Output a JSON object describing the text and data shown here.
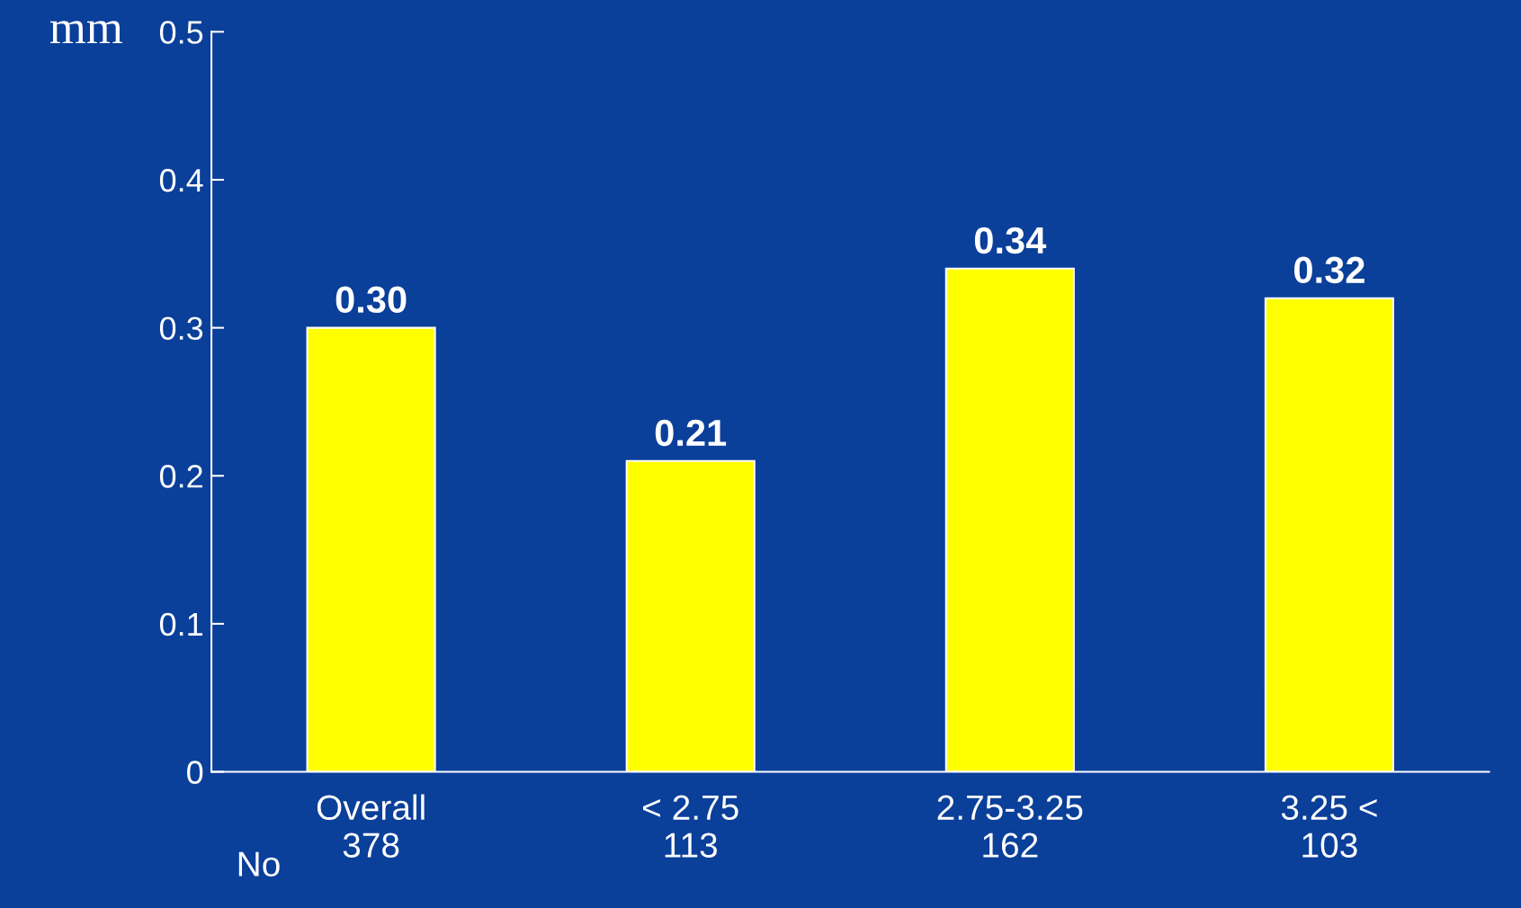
{
  "chart_data": {
    "type": "bar",
    "categories": [
      "Overall\n378",
      "< 2.75\n113",
      "2.75-3.25\n162",
      "3.25 <\n103"
    ],
    "values": [
      0.3,
      0.21,
      0.34,
      0.32
    ],
    "value_labels": [
      "0.30",
      "0.21",
      "0.34",
      "0.32"
    ],
    "color": "#ffff00",
    "ylabel": "mm",
    "ylim": [
      0,
      0.5
    ],
    "yticks": [
      0,
      0.1,
      0.2,
      0.3,
      0.4,
      0.5
    ],
    "annotations": [
      "No"
    ],
    "grid": false,
    "legend": false
  }
}
